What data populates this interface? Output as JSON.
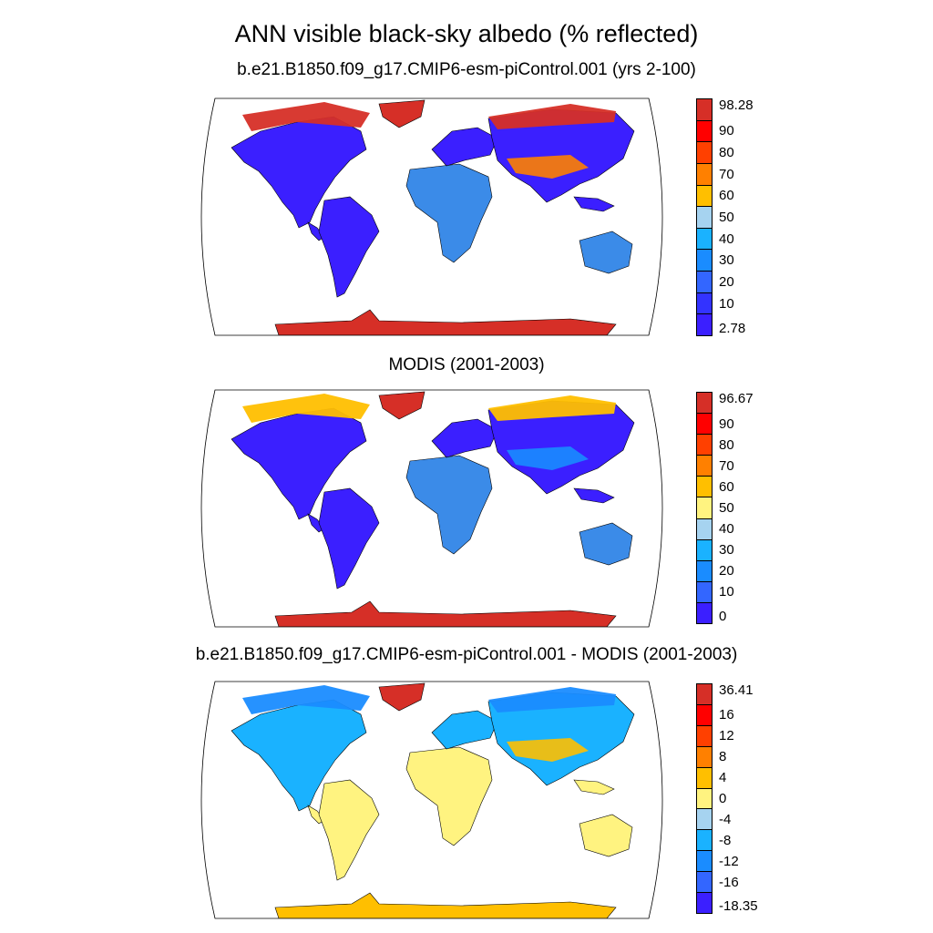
{
  "title": "ANN visible black-sky albedo (% reflected)",
  "panels": [
    {
      "subtitle": "b.e21.B1850.f09_g17.CMIP6-esm-piControl.001 (yrs 2-100)",
      "colorbar": {
        "labels": [
          "98.28",
          "90",
          "80",
          "70",
          "60",
          "50",
          "40",
          "30",
          "20",
          "10",
          "2.78"
        ],
        "colors": [
          "#d62f27",
          "#ff0000",
          "#ff4000",
          "#ff8000",
          "#ffbf00",
          "#a6d3f0",
          "#1ab2ff",
          "#1a8cff",
          "#3366ff",
          "#3333ff",
          "#3b1fff"
        ]
      },
      "regions": {
        "arctic": "#d62f27",
        "greenland": "#d62f27",
        "boreal": "#3b1fff",
        "tropics": "#3b1fff",
        "desert": "#3b8be8",
        "antarctica": "#d62f27",
        "band": "#ff8000"
      }
    },
    {
      "subtitle": "MODIS (2001-2003)",
      "colorbar": {
        "labels": [
          "96.67",
          "90",
          "80",
          "70",
          "60",
          "50",
          "40",
          "30",
          "20",
          "10",
          "0"
        ],
        "colors": [
          "#d62f27",
          "#ff0000",
          "#ff4000",
          "#ff8000",
          "#ffbf00",
          "#fff380",
          "#a6d3f0",
          "#1ab2ff",
          "#1a8cff",
          "#3366ff",
          "#3b1fff"
        ]
      },
      "regions": {
        "arctic": "#ffbf00",
        "greenland": "#d62f27",
        "boreal": "#3b1fff",
        "tropics": "#3b1fff",
        "desert": "#3b8be8",
        "antarctica": "#d62f27",
        "band": "#1a8cff"
      }
    },
    {
      "subtitle": "b.e21.B1850.f09_g17.CMIP6-esm-piControl.001 - MODIS (2001-2003)",
      "colorbar": {
        "labels": [
          "36.41",
          "16",
          "12",
          "8",
          "4",
          "0",
          "-4",
          "-8",
          "-12",
          "-16",
          "-18.35"
        ],
        "colors": [
          "#d62f27",
          "#ff0000",
          "#ff4000",
          "#ff8000",
          "#ffbf00",
          "#fff380",
          "#a6d3f0",
          "#1ab2ff",
          "#1a8cff",
          "#3366ff",
          "#3b1fff"
        ]
      },
      "regions": {
        "arctic": "#1a8cff",
        "greenland": "#d62f27",
        "boreal": "#1ab2ff",
        "tropics": "#fff380",
        "desert": "#fff380",
        "antarctica": "#ffbf00",
        "band": "#ffbf00"
      }
    }
  ]
}
